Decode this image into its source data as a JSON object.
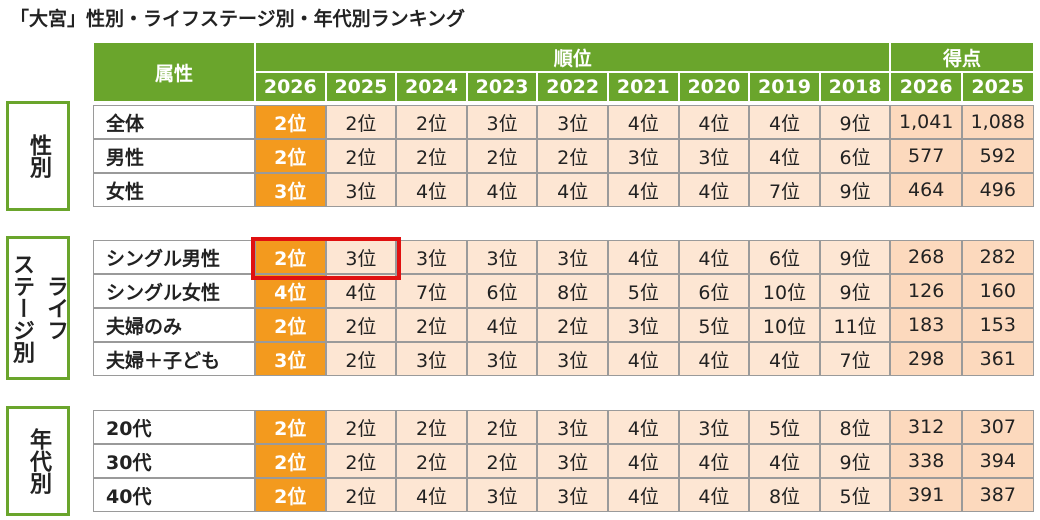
{
  "title": "「大宮」性別・ライフステージ別・年代別ランキング",
  "header": {
    "attribute": "属性",
    "rank": "順位",
    "score": "得点",
    "rank_years": [
      "2026",
      "2025",
      "2024",
      "2023",
      "2022",
      "2021",
      "2020",
      "2019",
      "2018"
    ],
    "score_years": [
      "2026",
      "2025"
    ]
  },
  "groups": [
    {
      "label": [
        "性別"
      ],
      "rows": [
        {
          "name": "全体",
          "ranks": [
            "2位",
            "2位",
            "2位",
            "3位",
            "3位",
            "4位",
            "4位",
            "4位",
            "9位"
          ],
          "scores": [
            "1,041",
            "1,088"
          ]
        },
        {
          "name": "男性",
          "ranks": [
            "2位",
            "2位",
            "2位",
            "2位",
            "2位",
            "3位",
            "3位",
            "4位",
            "6位"
          ],
          "scores": [
            "577",
            "592"
          ]
        },
        {
          "name": "女性",
          "ranks": [
            "3位",
            "3位",
            "4位",
            "4位",
            "4位",
            "4位",
            "4位",
            "7位",
            "9位"
          ],
          "scores": [
            "464",
            "496"
          ]
        }
      ]
    },
    {
      "label": [
        "ライフ",
        "ステージ別"
      ],
      "rows": [
        {
          "name": "シングル男性",
          "ranks": [
            "2位",
            "3位",
            "3位",
            "3位",
            "3位",
            "4位",
            "4位",
            "6位",
            "9位"
          ],
          "scores": [
            "268",
            "282"
          ]
        },
        {
          "name": "シングル女性",
          "ranks": [
            "4位",
            "4位",
            "7位",
            "6位",
            "8位",
            "5位",
            "6位",
            "10位",
            "9位"
          ],
          "scores": [
            "126",
            "160"
          ]
        },
        {
          "name": "夫婦のみ",
          "ranks": [
            "2位",
            "2位",
            "2位",
            "4位",
            "2位",
            "3位",
            "5位",
            "10位",
            "11位"
          ],
          "scores": [
            "183",
            "153"
          ]
        },
        {
          "name": "夫婦＋子ども",
          "ranks": [
            "3位",
            "2位",
            "3位",
            "3位",
            "3位",
            "4位",
            "4位",
            "4位",
            "7位"
          ],
          "scores": [
            "298",
            "361"
          ]
        }
      ]
    },
    {
      "label": [
        "年代別"
      ],
      "rows": [
        {
          "name": "20代",
          "ranks": [
            "2位",
            "2位",
            "2位",
            "2位",
            "3位",
            "4位",
            "3位",
            "5位",
            "8位"
          ],
          "scores": [
            "312",
            "307"
          ]
        },
        {
          "name": "30代",
          "ranks": [
            "2位",
            "2位",
            "2位",
            "2位",
            "3位",
            "4位",
            "4位",
            "4位",
            "9位"
          ],
          "scores": [
            "338",
            "394"
          ]
        },
        {
          "name": "40代",
          "ranks": [
            "2位",
            "2位",
            "4位",
            "3位",
            "3位",
            "4位",
            "4位",
            "8位",
            "5位"
          ],
          "scores": [
            "391",
            "387"
          ]
        }
      ]
    }
  ]
}
